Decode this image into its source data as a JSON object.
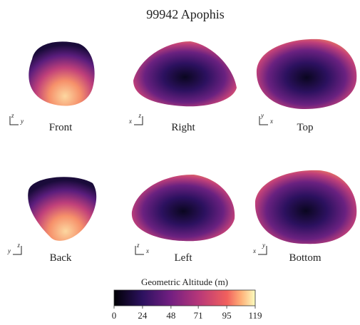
{
  "title": "99942 Apophis",
  "views": [
    {
      "label": "Front",
      "axes": {
        "up": "z",
        "side": "y"
      }
    },
    {
      "label": "Right",
      "axes": {
        "up": "z",
        "side": "x"
      }
    },
    {
      "label": "Top",
      "axes": {
        "up": "y",
        "side": "x"
      }
    },
    {
      "label": "Back",
      "axes": {
        "up": "z",
        "side": "y"
      }
    },
    {
      "label": "Left",
      "axes": {
        "up": "z",
        "side": "x"
      }
    },
    {
      "label": "Bottom",
      "axes": {
        "up": "y",
        "side": "x"
      }
    }
  ],
  "colorbar": {
    "label": "Geometric Altitude (m)",
    "lim": [
      0,
      119
    ],
    "ticks": [
      0,
      24,
      48,
      71,
      95,
      119
    ]
  }
}
